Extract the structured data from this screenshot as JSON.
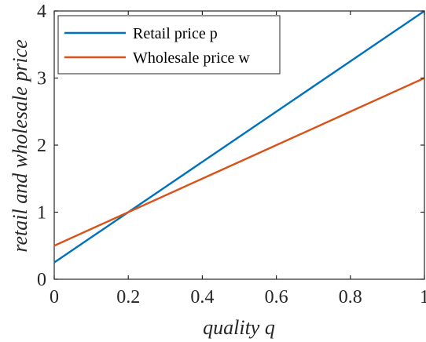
{
  "chart_data": {
    "type": "line",
    "xlabel": "quality q",
    "ylabel": "retail and wholesale price",
    "xlim": [
      0,
      1
    ],
    "ylim": [
      0,
      4
    ],
    "xticks": [
      0,
      0.2,
      0.4,
      0.6,
      0.8,
      1
    ],
    "yticks": [
      0,
      1,
      2,
      3,
      4
    ],
    "xtick_labels": [
      "0",
      "0.2",
      "0.4",
      "0.6",
      "0.8",
      "1"
    ],
    "ytick_labels": [
      "0",
      "1",
      "2",
      "3",
      "4"
    ],
    "grid": false,
    "legend_position": "top-left",
    "series": [
      {
        "name": "Retail price p",
        "color": "#0072BD",
        "x": [
          0,
          0.2,
          0.4,
          0.6,
          0.8,
          1
        ],
        "y": [
          0.25,
          1.0,
          1.75,
          2.5,
          3.25,
          4.0
        ]
      },
      {
        "name": "Wholesale price w",
        "color": "#D95319",
        "x": [
          0,
          0.2,
          0.4,
          0.6,
          0.8,
          1
        ],
        "y": [
          0.5,
          1.0,
          1.5,
          2.0,
          2.5,
          3.0
        ]
      }
    ]
  }
}
